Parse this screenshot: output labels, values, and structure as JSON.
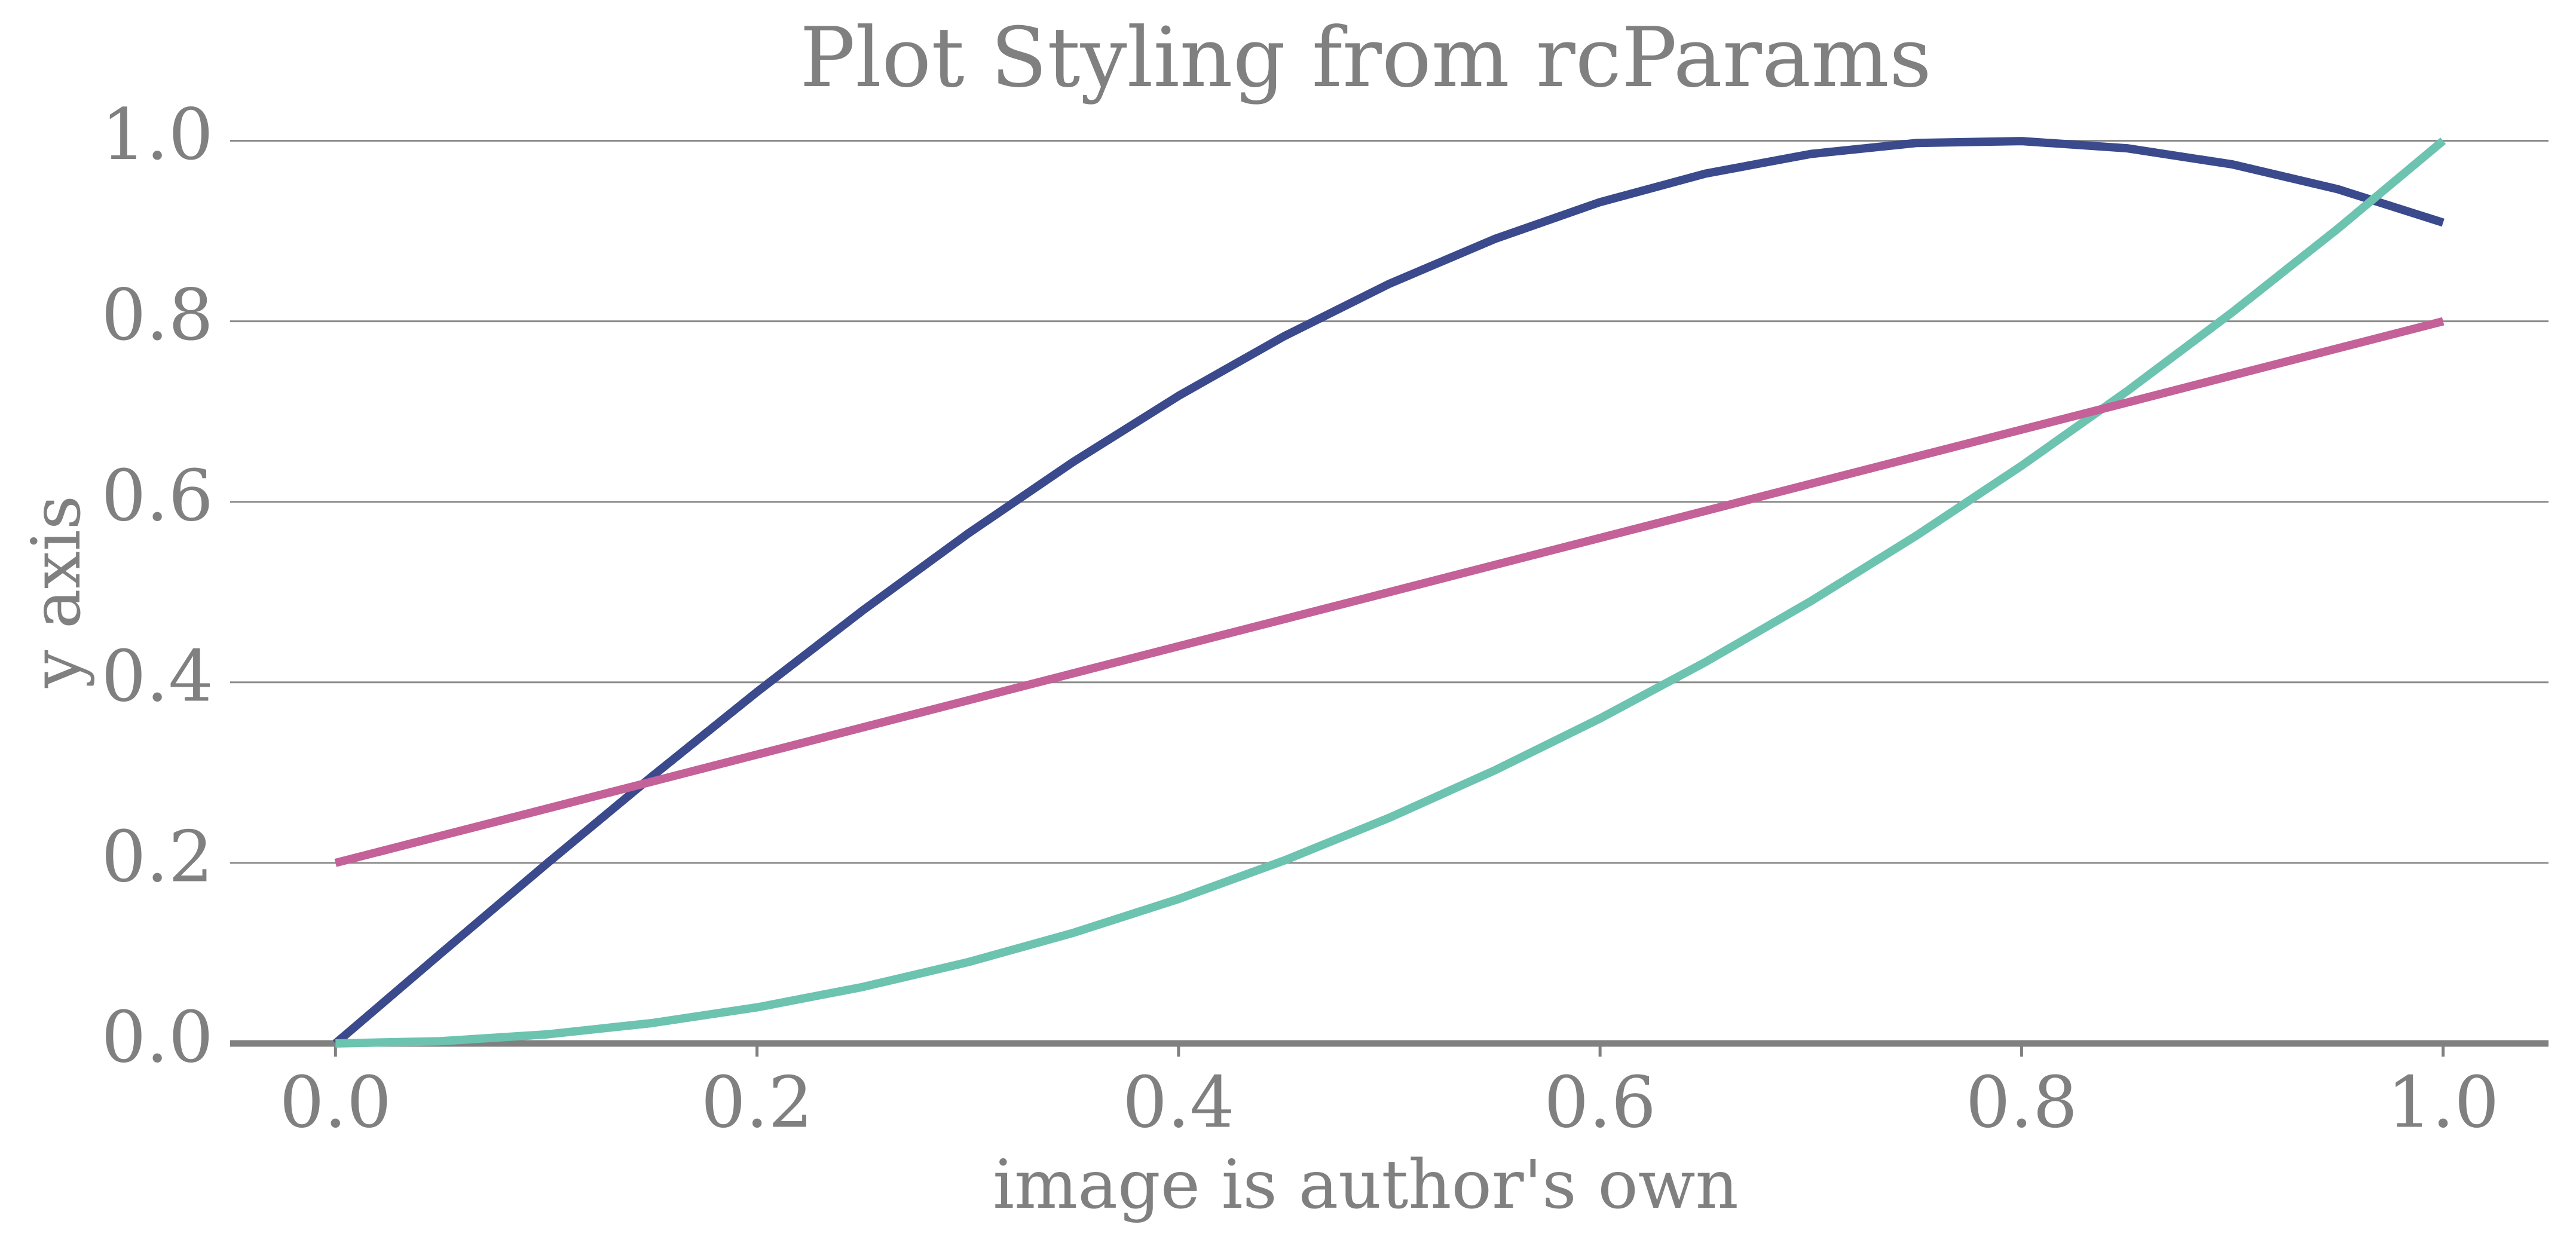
{
  "chart_data": {
    "type": "line",
    "title": "Plot Styling from rcParams",
    "x_label": "image is author's own",
    "y_label": "y axis",
    "x": [
      0,
      0.05,
      0.1,
      0.15,
      0.2,
      0.25,
      0.3,
      0.35,
      0.4,
      0.45,
      0.5,
      0.55,
      0.6,
      0.65,
      0.7,
      0.75,
      0.8,
      0.85,
      0.9,
      0.95,
      1
    ],
    "series": [
      {
        "color": "#3a4a8c",
        "values": [
          0,
          0.0998,
          0.1987,
          0.2955,
          0.3894,
          0.4794,
          0.5646,
          0.6442,
          0.7174,
          0.7833,
          0.8415,
          0.8912,
          0.932,
          0.9636,
          0.9854,
          0.9975,
          0.9996,
          0.9917,
          0.9738,
          0.9463,
          0.9093
        ]
      },
      {
        "color": "#6cc3b0",
        "values": [
          0,
          0.0025,
          0.01,
          0.0225,
          0.04,
          0.0625,
          0.09,
          0.1225,
          0.16,
          0.2025,
          0.25,
          0.3025,
          0.36,
          0.4225,
          0.49,
          0.5625,
          0.64,
          0.7225,
          0.81,
          0.9025,
          1
        ]
      },
      {
        "color": "#c46198",
        "values": [
          0.2,
          0.23,
          0.26,
          0.29,
          0.32,
          0.35,
          0.38,
          0.41,
          0.44,
          0.47,
          0.5,
          0.53,
          0.56,
          0.59,
          0.62,
          0.65,
          0.68,
          0.71,
          0.74,
          0.77,
          0.8
        ]
      }
    ],
    "xlim": [
      -0.05,
      1.05
    ],
    "ylim": [
      0,
      1.05
    ],
    "xticks": [
      {
        "value": 0,
        "label": "0.0"
      },
      0.2,
      0.4,
      0.6,
      0.8,
      {
        "value": 1,
        "label": "1.0"
      }
    ],
    "yticks": [
      {
        "value": 0,
        "label": "0.0"
      },
      0.2,
      0.4,
      0.6,
      0.8,
      {
        "value": 1,
        "label": "1.0"
      }
    ],
    "grid": "y"
  }
}
